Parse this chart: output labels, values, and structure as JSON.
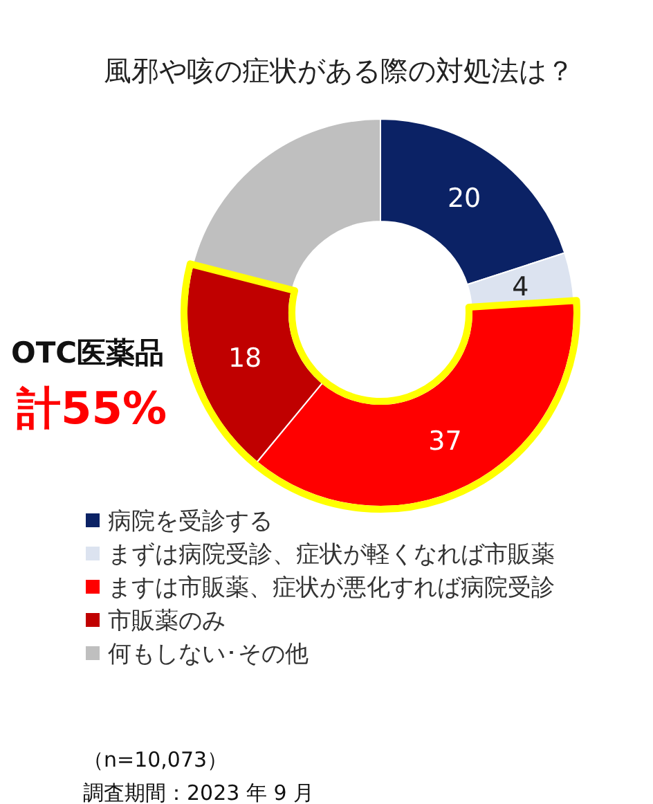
{
  "chart_data": {
    "type": "donut",
    "title": "風邪や咳の症状がある際の対処法は？",
    "categories": [
      "病院を受診する",
      "まずは病院受診、症状が軽くなれば市販薬",
      "ますは市販薬、症状が悪化すれば病院受診",
      "市販薬のみ",
      "何もしない･その他"
    ],
    "values": [
      20,
      4,
      37,
      18,
      21
    ],
    "colors": [
      "#0b2265",
      "#dce3f0",
      "#ff0000",
      "#c00000",
      "#bfbfbf"
    ],
    "value_labels": [
      "20",
      "4",
      "37",
      "18",
      null
    ],
    "legend": "bottom",
    "annotations": [
      "OTC医薬品",
      "計55%",
      "（n=10,073）",
      "調査期間：2023 年 9 月"
    ]
  }
}
